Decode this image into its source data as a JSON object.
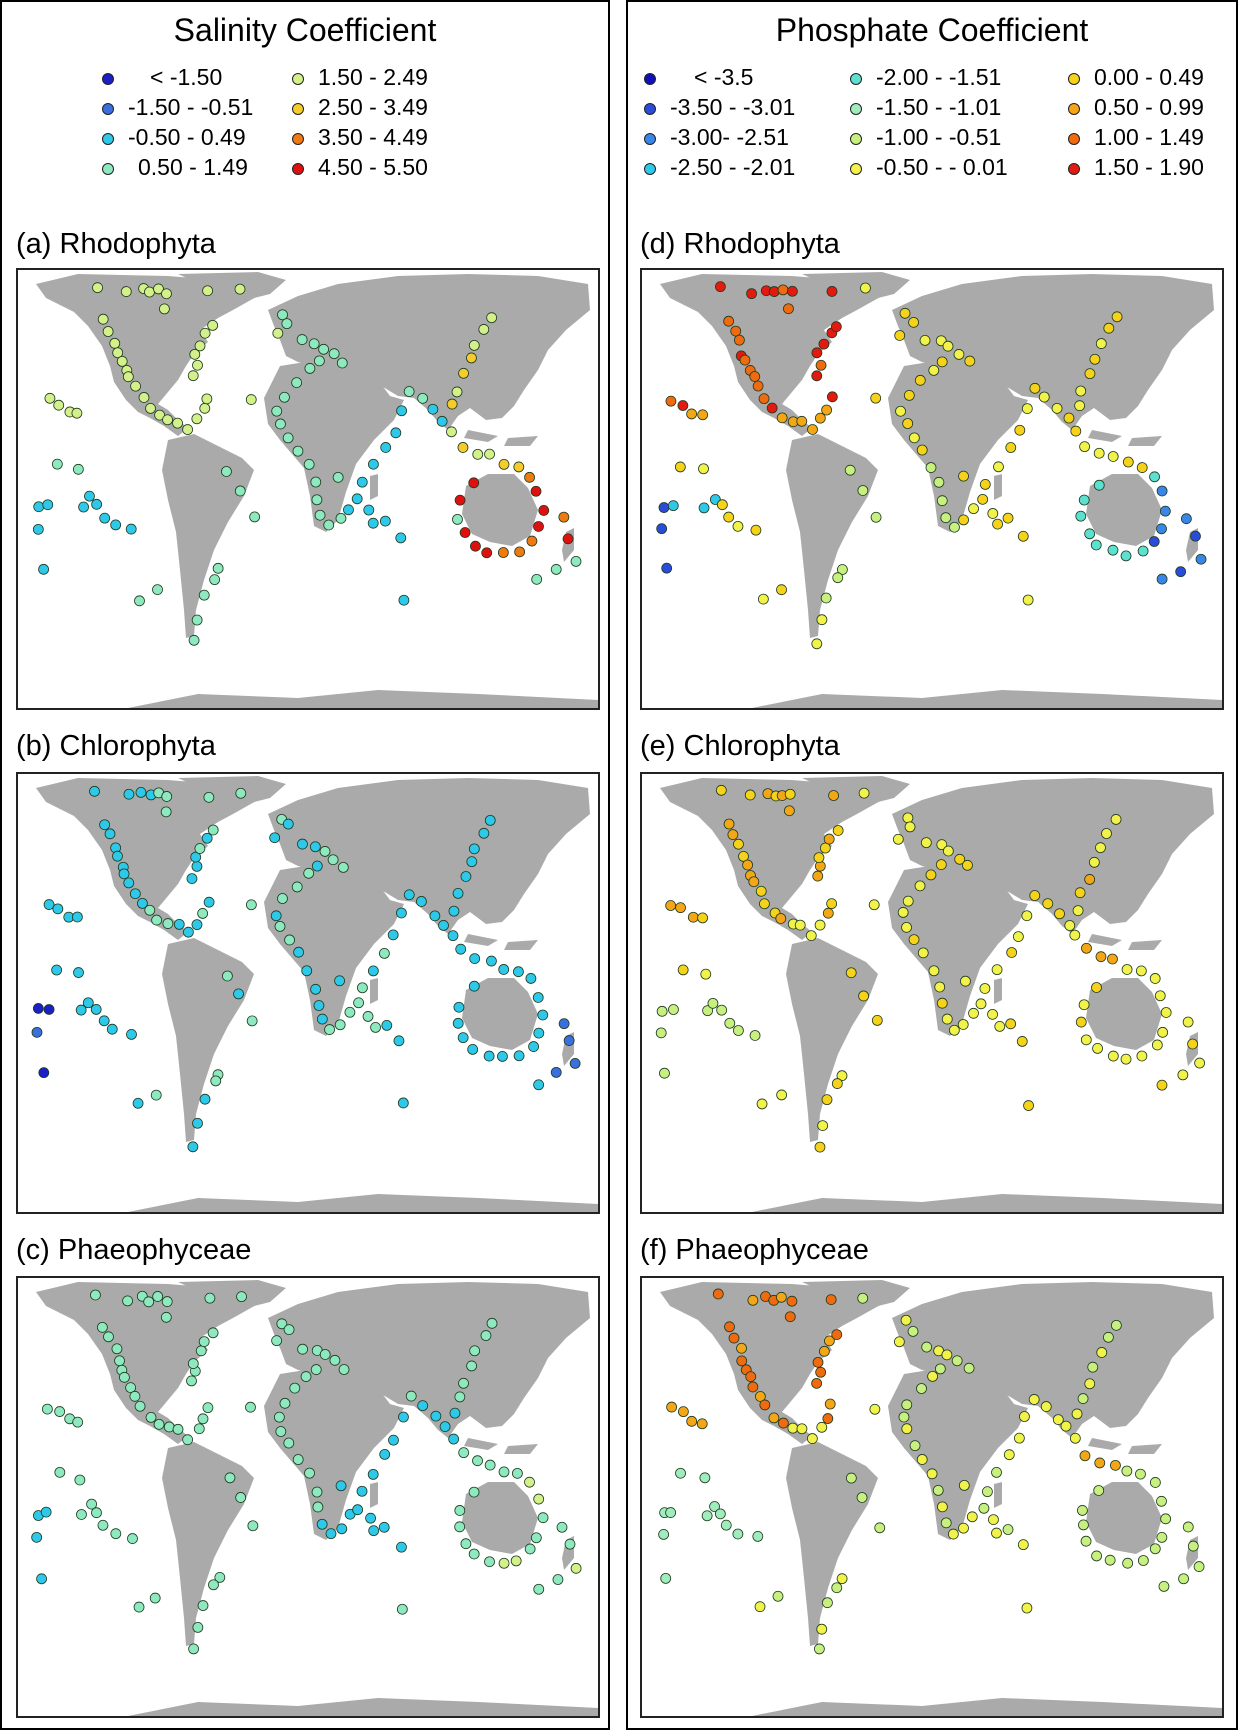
{
  "salinity": {
    "title": "Salinity Coefficient",
    "legend": [
      {
        "label": "< -1.50",
        "color": "#1a1fc8"
      },
      {
        "label": "-1.50 - -0.51",
        "color": "#3a6fe0"
      },
      {
        "label": "-0.50 - 0.49",
        "color": "#2ec8ea"
      },
      {
        "label": "0.50 - 1.49",
        "color": "#8ee8c0"
      },
      {
        "label": "1.50 - 2.49",
        "color": "#d4f08a"
      },
      {
        "label": "2.50 - 3.49",
        "color": "#f5cc2a"
      },
      {
        "label": "3.50 - 4.49",
        "color": "#f07a12"
      },
      {
        "label": "4.50 - 5.50",
        "color": "#e01010"
      }
    ],
    "panels": [
      {
        "label": "(a) Rhodophyta"
      },
      {
        "label": "(b) Chlorophyta"
      },
      {
        "label": "(c) Phaeophyceae"
      }
    ]
  },
  "phosphate": {
    "title": "Phosphate Coefficient",
    "legend": [
      {
        "label": "< -3.5",
        "color": "#1010b8"
      },
      {
        "label": "-3.50 - -3.01",
        "color": "#2a4cd8"
      },
      {
        "label": "-3.00- -2.51",
        "color": "#3a86e8"
      },
      {
        "label": "-2.50 - -2.01",
        "color": "#2ec8ea"
      },
      {
        "label": "-2.00 - -1.51",
        "color": "#5ce0d0"
      },
      {
        "label": "-1.50 - -1.01",
        "color": "#a0ecbc"
      },
      {
        "label": "-1.00 - -0.51",
        "color": "#c8f080"
      },
      {
        "label": "-0.50 - - 0.01",
        "color": "#f2f24a"
      },
      {
        "label": "0.00 - 0.49",
        "color": "#f6d21a"
      },
      {
        "label": "0.50 - 0.99",
        "color": "#f4a616"
      },
      {
        "label": "1.00 - 1.49",
        "color": "#f06a10"
      },
      {
        "label": "1.50 - 1.90",
        "color": "#e41a10"
      }
    ],
    "panels": [
      {
        "label": "(d) Rhodophyta"
      },
      {
        "label": "(e) Chlorophyta"
      },
      {
        "label": "(f) Phaeophyceae"
      }
    ]
  }
}
